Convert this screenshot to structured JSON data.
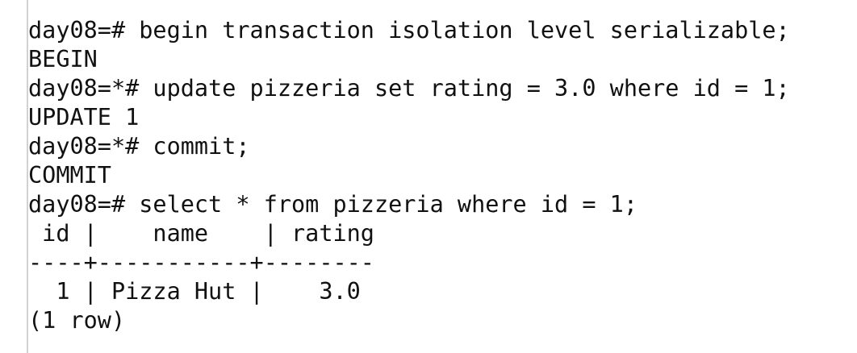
{
  "terminal": {
    "lines": [
      "day08=# begin transaction isolation level serializable;",
      "BEGIN",
      "day08=*# update pizzeria set rating = 3.0 where id = 1;",
      "UPDATE 1",
      "day08=*# commit;",
      "COMMIT",
      "day08=# select * from pizzeria where id = 1;",
      " id |    name    | rating",
      "----+-----------+--------",
      "  1 | Pizza Hut |    3.0",
      "(1 row)"
    ]
  }
}
